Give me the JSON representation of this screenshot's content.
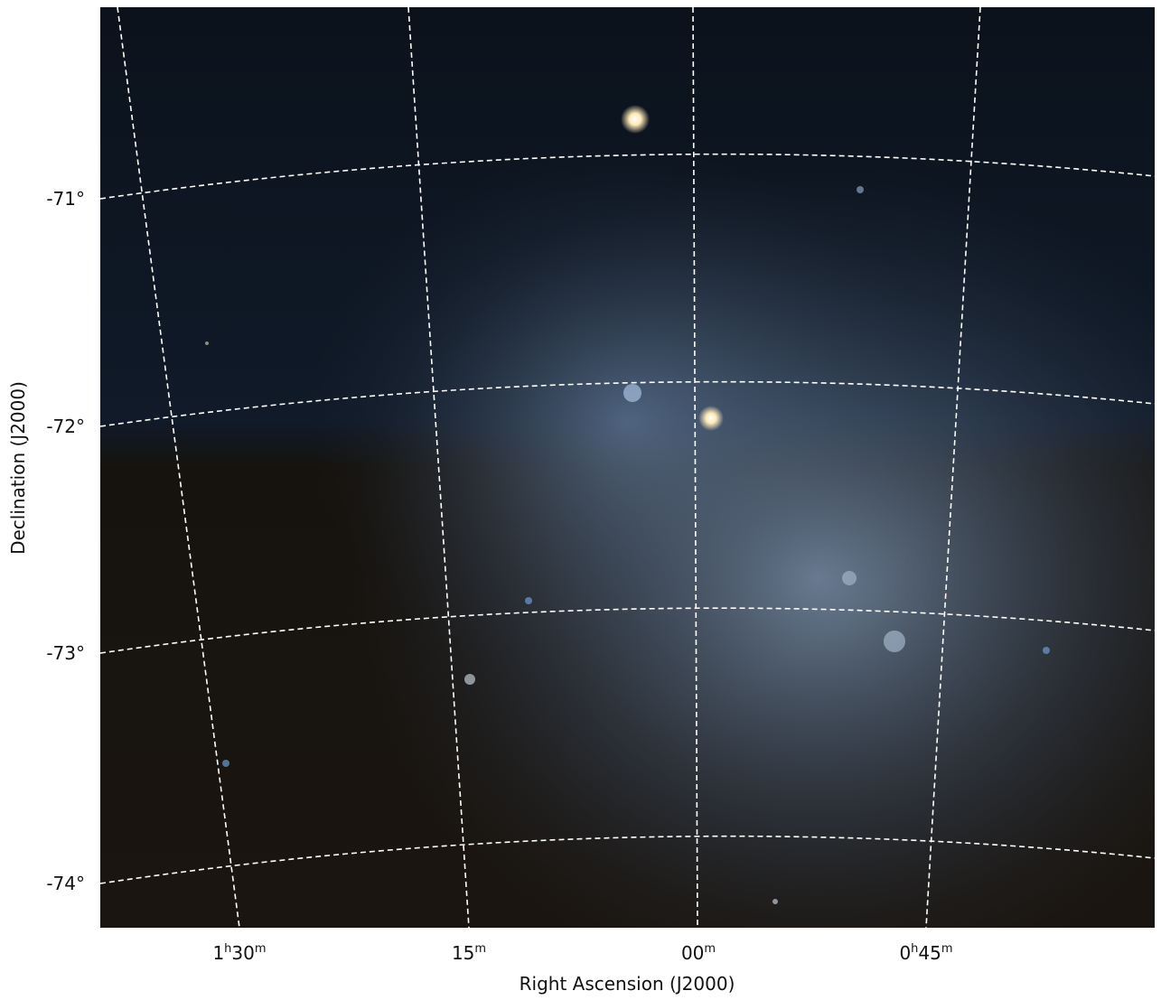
{
  "x_axis": {
    "label": "Right Ascension (J2000)",
    "ticks": [
      {
        "hours": "1",
        "hours_unit": "h",
        "minutes": "30",
        "minutes_unit": "m"
      },
      {
        "minutes": "15",
        "minutes_unit": "m"
      },
      {
        "minutes": "00",
        "minutes_unit": "m"
      },
      {
        "hours": "0",
        "hours_unit": "h",
        "minutes": "45",
        "minutes_unit": "m"
      }
    ]
  },
  "y_axis": {
    "label": "Declination (J2000)",
    "ticks": [
      "-71°",
      "-72°",
      "-73°",
      "-74°"
    ]
  }
}
